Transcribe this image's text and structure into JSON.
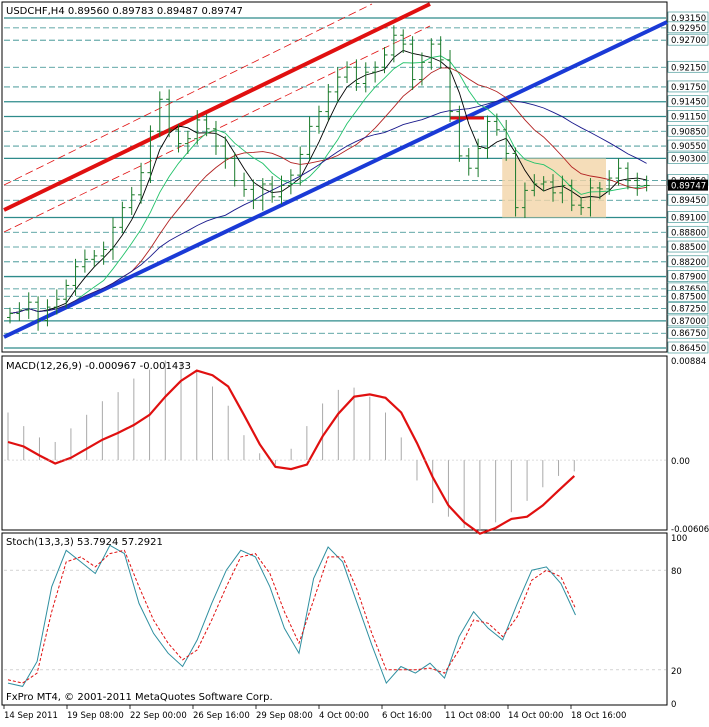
{
  "chart_data": [
    {
      "type": "candlestick",
      "symbol_line": "USDCHF,H4  0.89560 0.89783 0.89487 0.89747",
      "ylim": [
        0.8645,
        0.9315
      ],
      "price_tick_labels": [
        "0.93150",
        "0.92950",
        "0.92700",
        "0.92150",
        "0.91750",
        "0.91450",
        "0.91150",
        "0.90850",
        "0.90550",
        "0.90300",
        "0.89850",
        "0.89450",
        "0.89100",
        "0.88800",
        "0.88500",
        "0.88200",
        "0.87900",
        "0.87650",
        "0.87500",
        "0.87250",
        "0.87000",
        "0.86750",
        "0.86450"
      ],
      "current_price_label": "0.89747",
      "x_tick_labels": [
        "14 Sep 2011",
        "19 Sep 08:00",
        "22 Sep 00:00",
        "26 Sep 16:00",
        "29 Sep 08:00",
        "4 Oct 00:00",
        "6 Oct 16:00",
        "11 Oct 08:00",
        "14 Oct 00:00",
        "18 Oct 16:00"
      ],
      "close_series": [
        0.8715,
        0.8722,
        0.8738,
        0.8701,
        0.8728,
        0.8744,
        0.8772,
        0.881,
        0.8825,
        0.8832,
        0.8845,
        0.889,
        0.893,
        0.8956,
        0.9001,
        0.9085,
        0.915,
        0.9088,
        0.906,
        0.907,
        0.9108,
        0.909,
        0.9055,
        0.903,
        0.8985,
        0.8967,
        0.8945,
        0.8978,
        0.8952,
        0.8975,
        0.8996,
        0.9038,
        0.9095,
        0.9125,
        0.9165,
        0.9195,
        0.9215,
        0.9182,
        0.9205,
        0.9215,
        0.924,
        0.928,
        0.9262,
        0.919,
        0.9225,
        0.9262,
        0.923,
        0.9125,
        0.9035,
        0.901,
        0.905,
        0.9105,
        0.9088,
        0.904,
        0.893,
        0.8965,
        0.8978,
        0.8982,
        0.896,
        0.8975,
        0.8935,
        0.893,
        0.897,
        0.8968,
        0.899,
        0.901,
        0.8985,
        0.8975,
        0.8975
      ],
      "moving_averages_visible": 4,
      "annotation_zone": {
        "from_label": "11 Oct 08:00",
        "price_high": 0.903,
        "price_low": 0.891
      }
    },
    {
      "type": "line",
      "title": "MACD(12,26,9) -0.000967 -0.001433",
      "ylim": [
        -0.006,
        0.00884
      ],
      "tick_labels": [
        "0.00884",
        "0.00",
        "-0.00606"
      ],
      "signal": [
        0.0016,
        0.0012,
        0.0004,
        -0.0003,
        0.0002,
        0.001,
        0.0018,
        0.0024,
        0.0031,
        0.004,
        0.0056,
        0.007,
        0.0079,
        0.0075,
        0.0065,
        0.004,
        0.0014,
        -0.0006,
        -0.0008,
        -0.0004,
        0.0021,
        0.0041,
        0.0056,
        0.0058,
        0.0055,
        0.0042,
        0.0015,
        -0.0015,
        -0.004,
        -0.0055,
        -0.0065,
        -0.006,
        -0.0052,
        -0.005,
        -0.004,
        -0.0027,
        -0.0014
      ],
      "histogram": [
        0.0042,
        0.003,
        0.002,
        0.0016,
        0.0028,
        0.004,
        0.0052,
        0.006,
        0.0072,
        0.008,
        0.0088,
        0.0086,
        0.0078,
        0.0065,
        0.0048,
        0.0022,
        0.0006,
        -0.0004,
        0.001,
        0.003,
        0.005,
        0.0062,
        0.0064,
        0.0056,
        0.0042,
        0.002,
        -0.0018,
        -0.0038,
        -0.005,
        -0.006,
        -0.0062,
        -0.0055,
        -0.0046,
        -0.0036,
        -0.0024,
        -0.0014,
        -0.001
      ]
    },
    {
      "type": "line",
      "title": "Stoch(13,3,3) 53.7924 57.2921",
      "ylim": [
        0,
        100
      ],
      "tick_labels": [
        "100",
        "80",
        "20",
        "0"
      ],
      "series": [
        {
          "values": [
            12,
            10,
            25,
            70,
            92,
            85,
            78,
            95,
            90,
            60,
            42,
            30,
            22,
            38,
            60,
            80,
            92,
            88,
            70,
            45,
            30,
            75,
            94,
            85,
            60,
            35,
            12,
            22,
            18,
            24,
            15,
            40,
            55,
            45,
            38,
            60,
            80,
            82,
            72,
            53
          ]
        },
        {
          "values": [
            14,
            12,
            18,
            55,
            85,
            88,
            82,
            90,
            92,
            70,
            50,
            36,
            26,
            32,
            50,
            70,
            88,
            90,
            78,
            55,
            36,
            62,
            88,
            88,
            68,
            42,
            20,
            20,
            20,
            21,
            18,
            32,
            50,
            48,
            40,
            52,
            74,
            80,
            76,
            57
          ]
        }
      ]
    }
  ],
  "footer": {
    "copyright": "FxPro MT4, © 2001-2011 MetaQuotes Software Corp."
  }
}
